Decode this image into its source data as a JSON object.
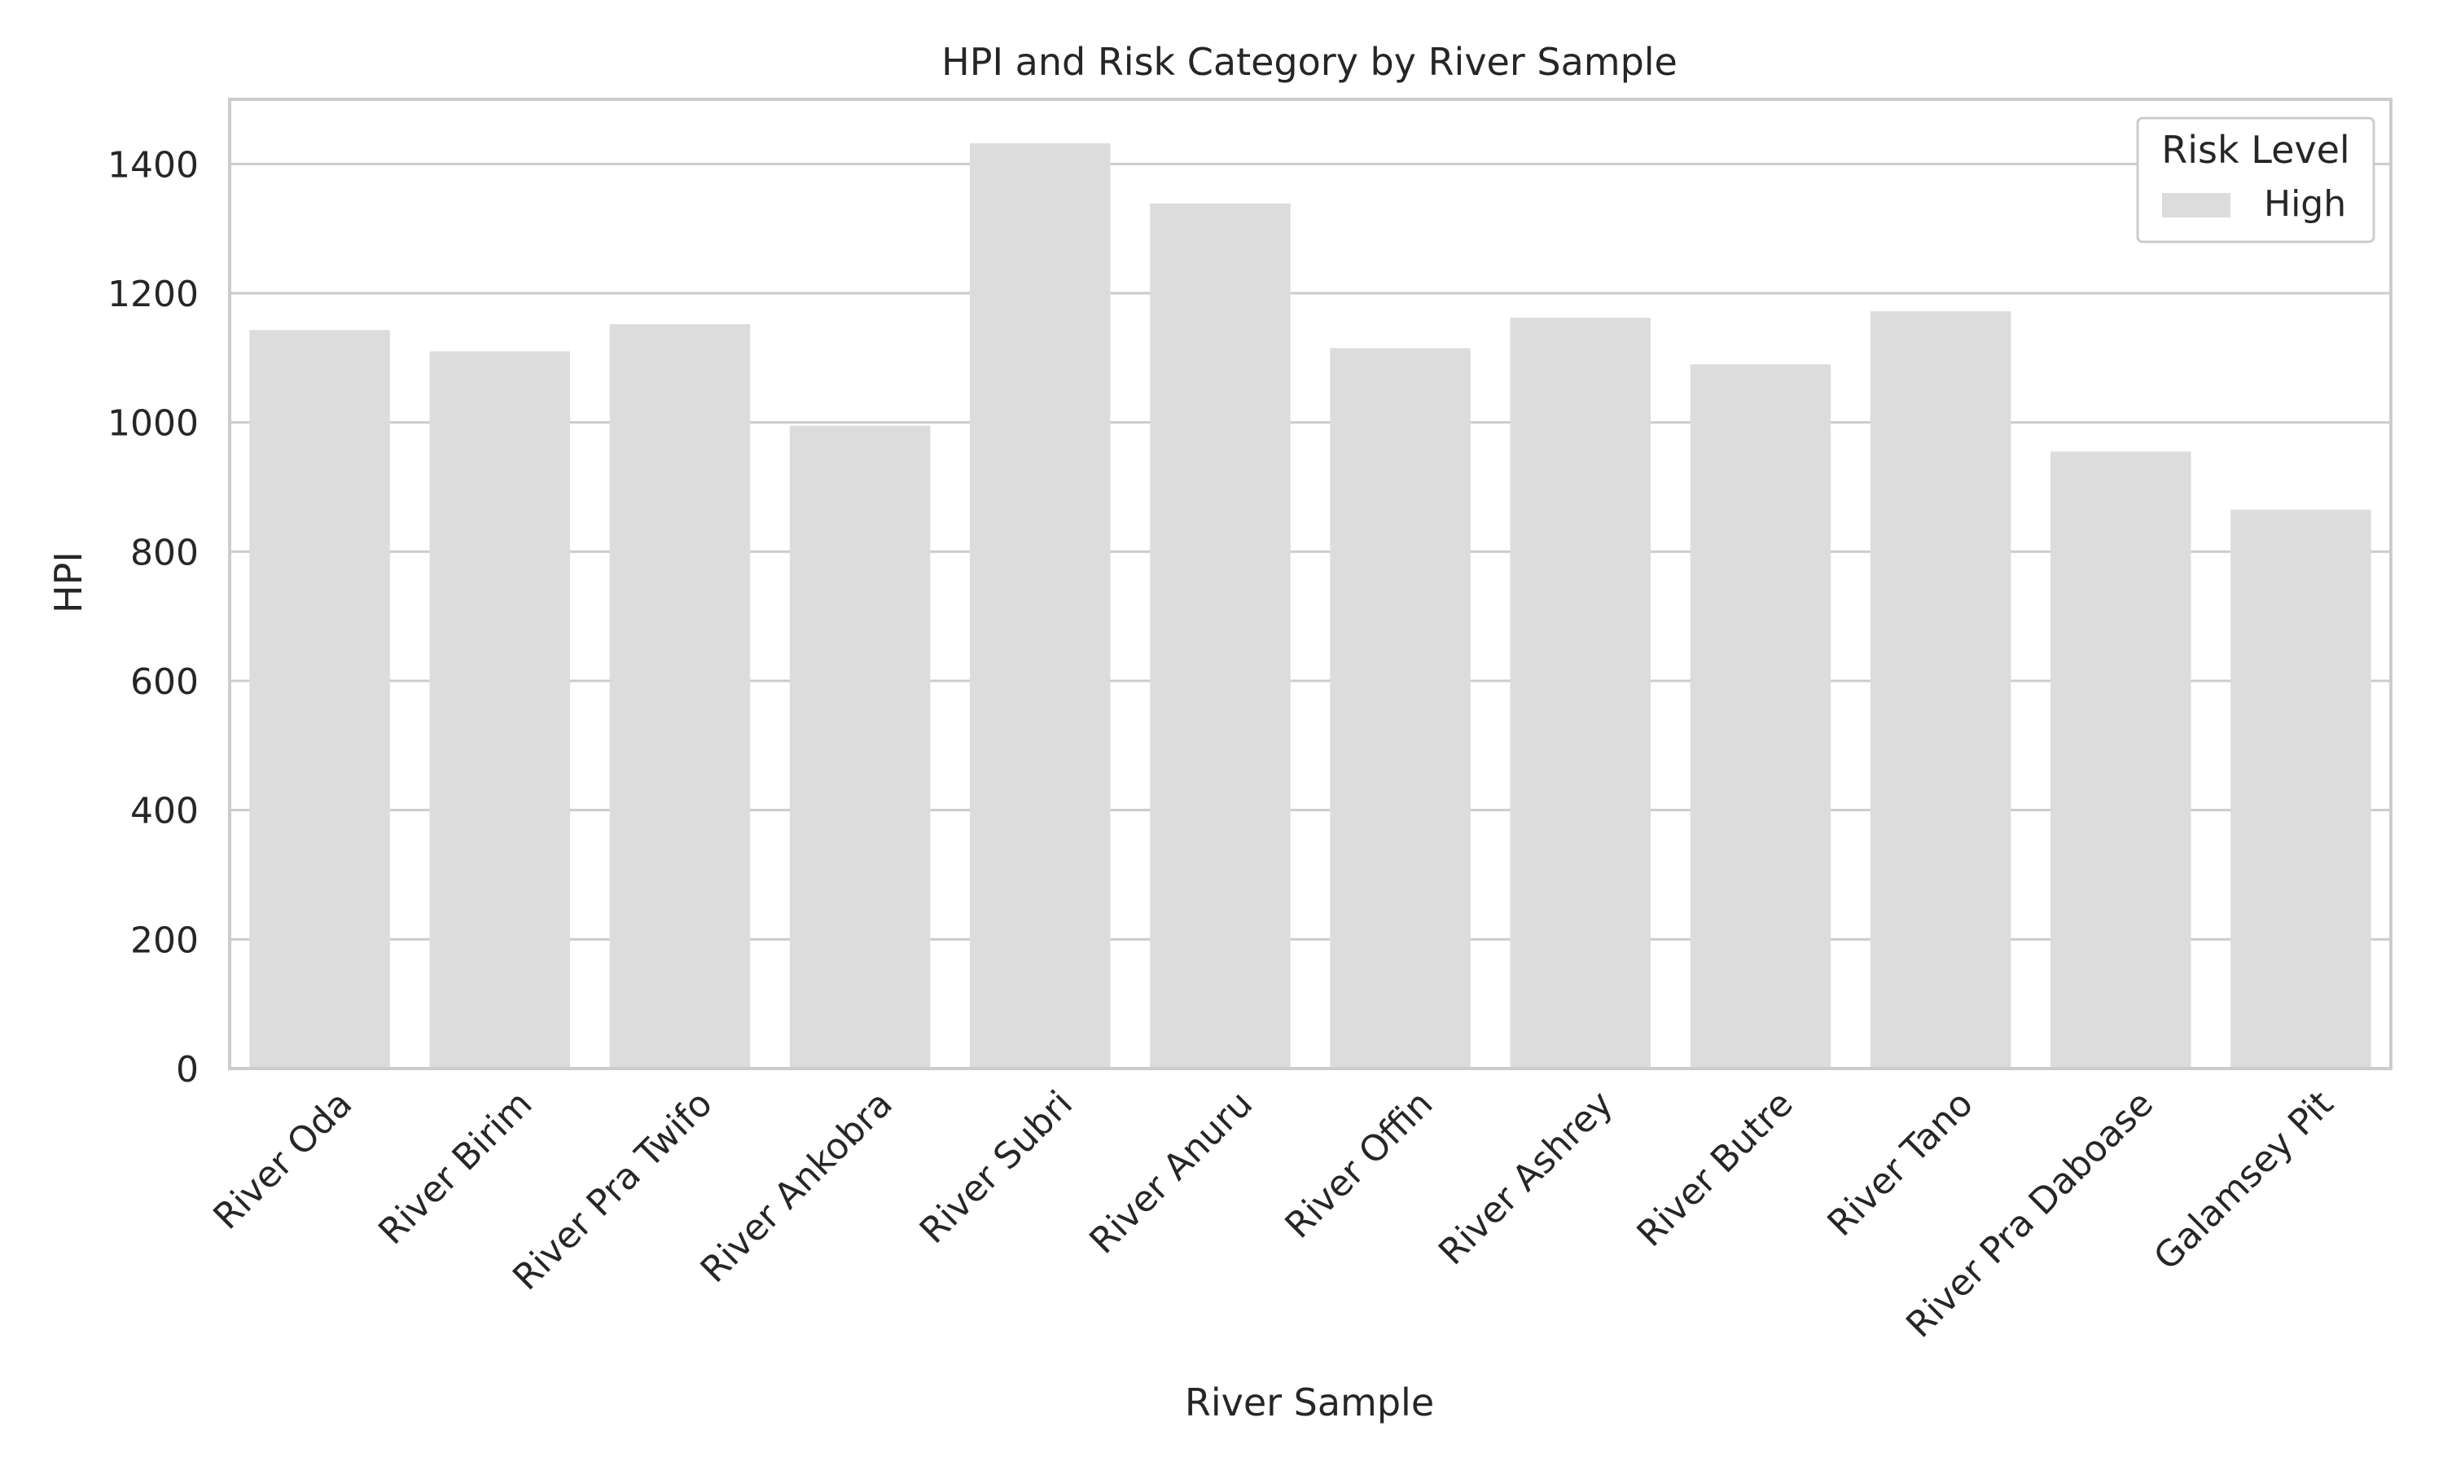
{
  "chart_data": {
    "type": "bar",
    "title": "HPI and Risk Category by River Sample",
    "xlabel": "River Sample",
    "ylabel": "HPI",
    "categories": [
      "River Oda",
      "River Birim",
      "River Pra Twifo",
      "River Ankobra",
      "River Subri",
      "River Anuru",
      "River Offin",
      "River Ashrey",
      "River Butre",
      "River Tano",
      "River Pra Daboase",
      "Galamsey Pit"
    ],
    "series": [
      {
        "name": "High",
        "values": [
          1143,
          1110,
          1152,
          995,
          1432,
          1339,
          1115,
          1162,
          1090,
          1172,
          955,
          865
        ]
      }
    ],
    "ylim": [
      0,
      1500
    ],
    "yticks": [
      0,
      200,
      400,
      600,
      800,
      1000,
      1200,
      1400
    ],
    "ytick_labels": [
      "0",
      "200",
      "400",
      "600",
      "800",
      "1000",
      "1200",
      "1400"
    ],
    "grid": true,
    "legend": {
      "title": "Risk Level",
      "placement": "top-right",
      "entries": [
        "High"
      ]
    },
    "colors": {
      "bar": "#dcdcdc",
      "grid": "#cccccc",
      "axes": "#cccccc",
      "text": "#262626",
      "background": "#ffffff"
    }
  }
}
